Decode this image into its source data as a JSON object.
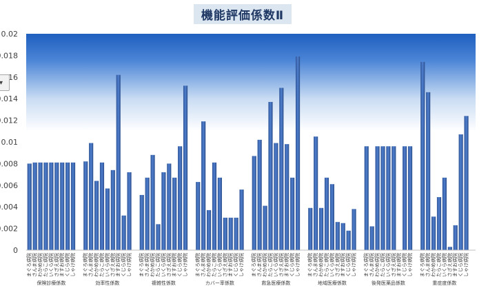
{
  "chart_data": {
    "type": "bar",
    "title": "機能評価係数Ⅱ",
    "ylim": [
      0,
      0.02
    ],
    "yticks": [
      "0",
      "0.002",
      "0.004",
      "0.006",
      "0.008",
      "0.01",
      "0.012",
      "0.014",
      "0.016",
      "0.018",
      "0.02"
    ],
    "hospitals": [
      "まぐろ病院",
      "さんま病院",
      "わかめ病院",
      "たらこ病院",
      "いくら病院",
      "さざえ病院",
      "ますお病院",
      "くじら病院",
      "しゃけ病院"
    ],
    "groups": [
      {
        "name": "保険診療係数",
        "values": [
          0.008,
          0.0081,
          0.0081,
          0.0081,
          0.0081,
          0.0081,
          0.0081,
          0.0081,
          0.0081
        ]
      },
      {
        "name": "効率性係数",
        "values": [
          0.0082,
          0.0099,
          0.0064,
          0.0081,
          0.0057,
          0.0074,
          0.0162,
          0.0032,
          0.0072
        ]
      },
      {
        "name": "複雑性係数",
        "values": [
          0.0051,
          0.0067,
          0.0088,
          0.0024,
          0.0072,
          0.008,
          0.0067,
          0.0096,
          0.0152
        ]
      },
      {
        "name": "カバー率係数",
        "values": [
          0.0063,
          0.0119,
          0.0037,
          0.0081,
          0.0067,
          0.003,
          0.003,
          0.003,
          0.0056
        ]
      },
      {
        "name": "救急医療係数",
        "values": [
          0.0087,
          0.0102,
          0.0041,
          0.0137,
          0.0099,
          0.015,
          0.0098,
          0.0067,
          0.0179
        ]
      },
      {
        "name": "地域医療係数",
        "values": [
          0.0039,
          0.0105,
          0.0039,
          0.0067,
          0.0061,
          0.0026,
          0.0025,
          0.0018,
          0.0038
        ]
      },
      {
        "name": "後発医薬品係数",
        "values": [
          0.0096,
          0.0022,
          0.0096,
          0.0096,
          0.0096,
          0.0096,
          0.0,
          0.0096,
          0.0096
        ]
      },
      {
        "name": "重症度係数",
        "values": [
          0.0174,
          0.0146,
          0.0031,
          0.0049,
          0.0067,
          0.0003,
          0.0023,
          0.0107,
          0.0124
        ]
      }
    ],
    "filter_button": "▾",
    "grid": false,
    "legend": "none"
  }
}
